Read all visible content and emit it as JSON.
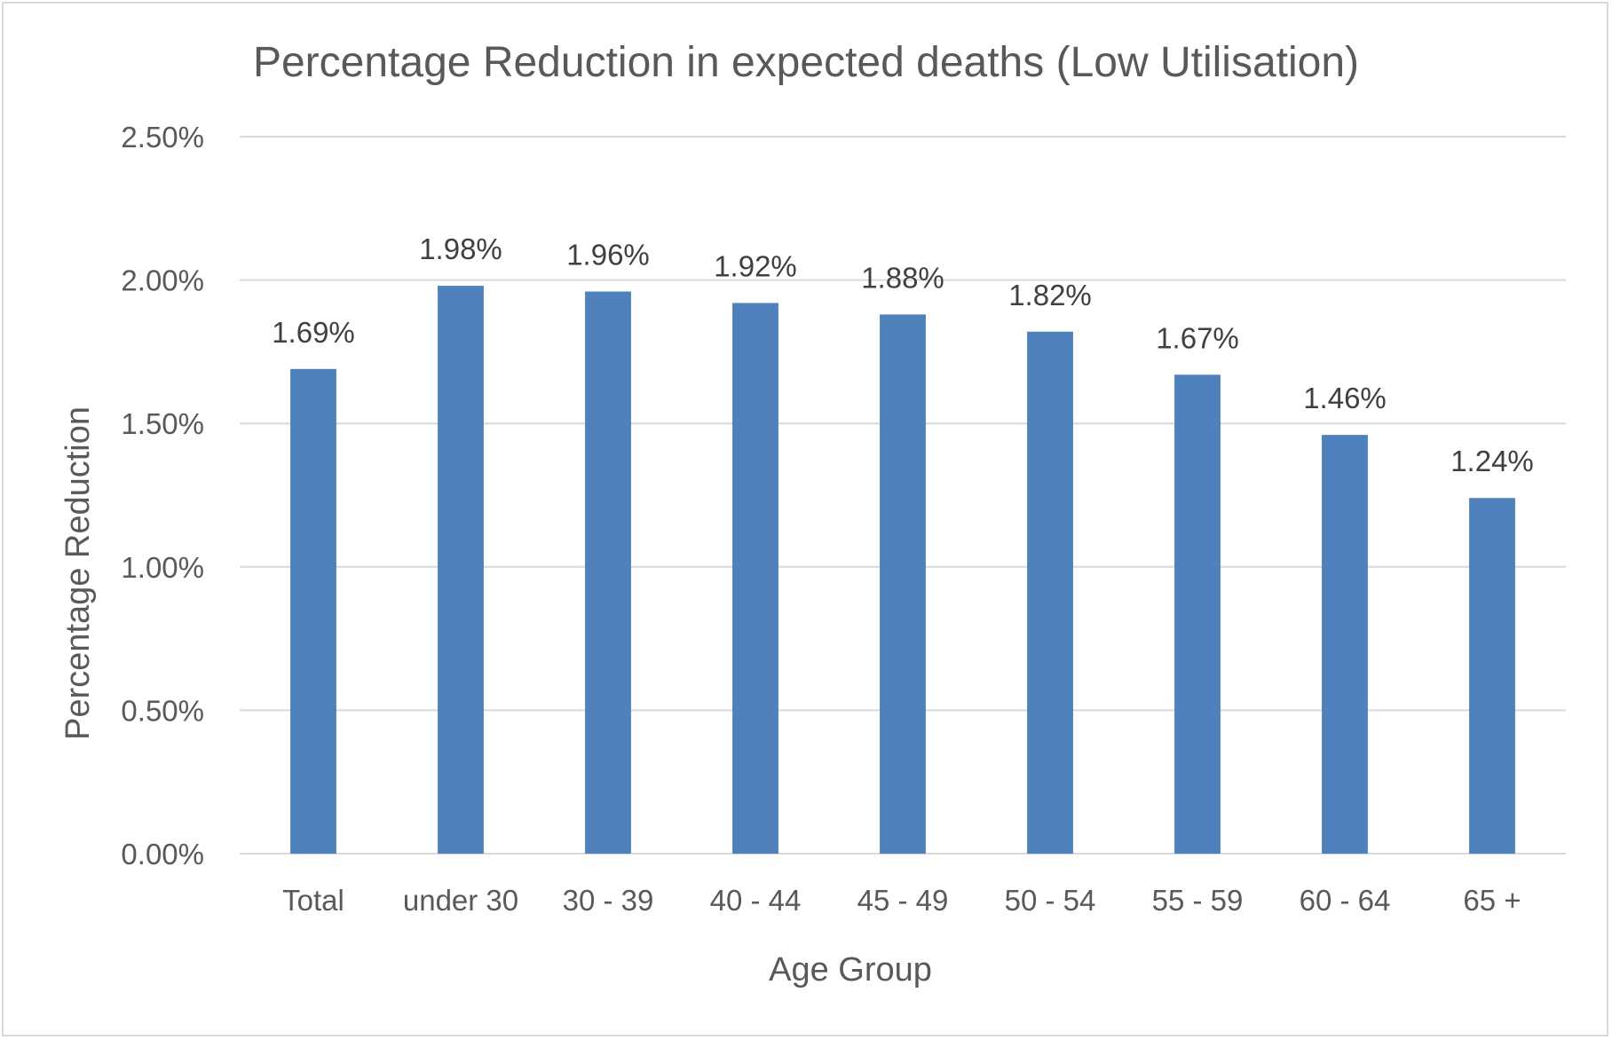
{
  "chart_data": {
    "type": "bar",
    "title": "Percentage Reduction in expected deaths (Low Utilisation)",
    "xlabel": "Age Group",
    "ylabel": "Percentage Reduction",
    "categories": [
      "Total",
      "under 30",
      "30 - 39",
      "40 - 44",
      "45 - 49",
      "50 - 54",
      "55 - 59",
      "60 - 64",
      "65 +"
    ],
    "values": [
      1.69,
      1.98,
      1.96,
      1.92,
      1.88,
      1.82,
      1.67,
      1.46,
      1.24
    ],
    "data_labels": [
      "1.69%",
      "1.98%",
      "1.96%",
      "1.92%",
      "1.88%",
      "1.82%",
      "1.67%",
      "1.46%",
      "1.24%"
    ],
    "ylim": [
      0,
      2.5
    ],
    "yticks": [
      0,
      0.5,
      1.0,
      1.5,
      2.0,
      2.5
    ],
    "ytick_labels": [
      "0.00%",
      "0.50%",
      "1.00%",
      "1.50%",
      "2.00%",
      "2.50%"
    ],
    "grid": true,
    "legend": "none",
    "bar_color": "#4f81bd"
  }
}
